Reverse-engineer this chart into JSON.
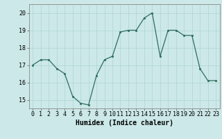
{
  "x": [
    0,
    1,
    2,
    3,
    4,
    5,
    6,
    7,
    8,
    9,
    10,
    11,
    12,
    13,
    14,
    15,
    16,
    17,
    18,
    19,
    20,
    21,
    22,
    23
  ],
  "y": [
    17.0,
    17.3,
    17.3,
    16.8,
    16.5,
    15.2,
    14.8,
    14.7,
    16.4,
    17.3,
    17.5,
    18.9,
    19.0,
    19.0,
    19.7,
    20.0,
    17.5,
    19.0,
    19.0,
    18.7,
    18.7,
    16.8,
    16.1,
    16.1
  ],
  "line_color": "#2d6e5e",
  "marker_color": "#2d6e5e",
  "bg_color": "#cce8e8",
  "grid_color": "#b0d4d4",
  "xlabel": "Humidex (Indice chaleur)",
  "xlabel_fontsize": 7,
  "tick_fontsize": 6,
  "ylim": [
    14.5,
    20.5
  ],
  "yticks": [
    15,
    16,
    17,
    18,
    19,
    20
  ],
  "xlim": [
    -0.5,
    23.5
  ],
  "xticks": [
    0,
    1,
    2,
    3,
    4,
    5,
    6,
    7,
    8,
    9,
    10,
    11,
    12,
    13,
    14,
    15,
    16,
    17,
    18,
    19,
    20,
    21,
    22,
    23
  ]
}
